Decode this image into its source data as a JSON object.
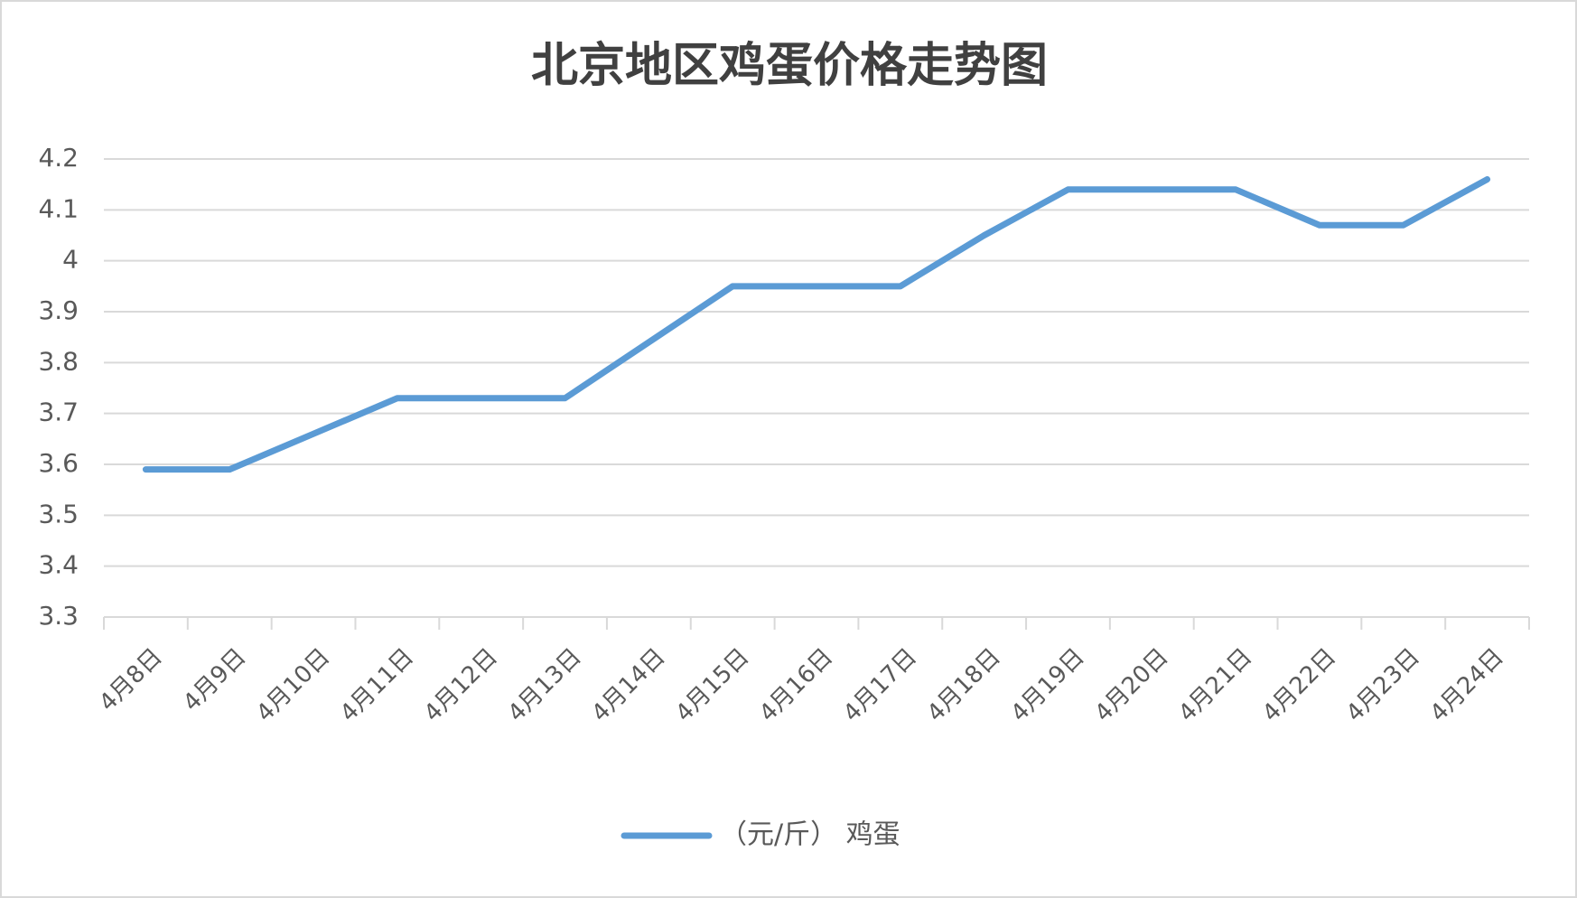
{
  "chart_data": {
    "type": "line",
    "title": "北京地区鸡蛋价格走势图",
    "categories": [
      "4月8日",
      "4月9日",
      "4月10日",
      "4月11日",
      "4月12日",
      "4月13日",
      "4月14日",
      "4月15日",
      "4月16日",
      "4月17日",
      "4月18日",
      "4月19日",
      "4月20日",
      "4月21日",
      "4月22日",
      "4月23日",
      "4月24日"
    ],
    "series": [
      {
        "name": "（元/斤） 鸡蛋",
        "color": "#5b9bd5",
        "values": [
          3.59,
          3.59,
          3.66,
          3.73,
          3.73,
          3.73,
          3.84,
          3.95,
          3.95,
          3.95,
          4.05,
          4.14,
          4.14,
          4.14,
          4.07,
          4.07,
          4.16
        ]
      }
    ],
    "ylim": [
      3.3,
      4.2
    ],
    "yticks": [
      3.3,
      3.4,
      3.5,
      3.6,
      3.7,
      3.8,
      3.9,
      4,
      4.1,
      4.2
    ],
    "grid": true,
    "legend": "bottom"
  }
}
